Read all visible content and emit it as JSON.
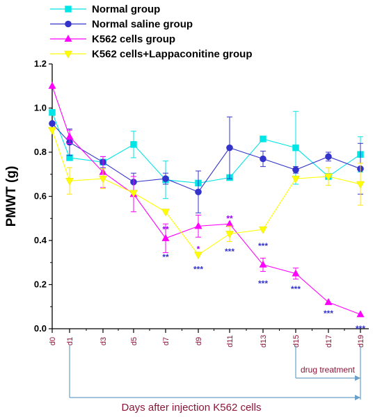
{
  "chart_data": {
    "type": "line",
    "xlabel": "Days after injection K562 cells",
    "ylabel": "PMWT (g)",
    "ylim": [
      0.0,
      1.2
    ],
    "yticks": [
      "0.0",
      "0.2",
      "0.4",
      "0.6",
      "0.8",
      "1.0",
      "1.2"
    ],
    "categories": [
      "d0",
      "d1",
      "d3",
      "d5",
      "d7",
      "d9",
      "d11",
      "d13",
      "d15",
      "d17",
      "d19"
    ],
    "annotation": "drug treatment",
    "legend_position": "top-left",
    "grid": false,
    "series": [
      {
        "name": "Normal group",
        "color": "#00e5e5",
        "marker": "square",
        "values": [
          0.98,
          0.775,
          0.755,
          0.835,
          0.675,
          0.66,
          0.685,
          0.86,
          0.82,
          0.69,
          0.79
        ],
        "errors": [
          0.0,
          0.0,
          0.0,
          0.06,
          0.085,
          0.0,
          0.0,
          0.0,
          0.165,
          0.0,
          0.08
        ]
      },
      {
        "name": "Normal saline group",
        "color": "#3333cc",
        "marker": "circle",
        "values": [
          0.93,
          0.845,
          0.755,
          0.665,
          0.68,
          0.62,
          0.82,
          0.77,
          0.72,
          0.78,
          0.725
        ],
        "errors": [
          0.0,
          0.06,
          0.025,
          0.04,
          0.025,
          0.095,
          0.14,
          0.035,
          0.015,
          0.02,
          0.115
        ]
      },
      {
        "name": "K562 cells group",
        "color": "#ff00ff",
        "marker": "triangle-up",
        "values": [
          1.1,
          0.87,
          0.71,
          0.61,
          0.41,
          0.465,
          0.475,
          0.29,
          0.25,
          0.12,
          0.065
        ],
        "errors": [
          0.0,
          0.03,
          0.07,
          0.08,
          0.065,
          0.05,
          0.0,
          0.03,
          0.025,
          0.0,
          0.0
        ]
      },
      {
        "name": "K562 cells+Lappaconitine group",
        "color": "#ffff00",
        "marker": "triangle-down",
        "values": [
          0.9,
          0.67,
          0.68,
          0.615,
          0.53,
          0.335,
          0.43,
          0.45,
          0.68,
          0.69,
          0.655
        ],
        "errors": [
          0.0,
          0.06,
          0.045,
          0.0,
          0.0,
          0.0,
          0.035,
          0.0,
          0.0,
          0.04,
          0.095
        ]
      }
    ],
    "significance": [
      {
        "cat": "d7",
        "value": 0.45,
        "text": "**",
        "color": "#9900ff"
      },
      {
        "cat": "d7",
        "value": 0.325,
        "text": "**",
        "color": "#3333cc"
      },
      {
        "cat": "d9",
        "value": 0.36,
        "text": "*",
        "color": "#9900ff"
      },
      {
        "cat": "d9",
        "value": 0.27,
        "text": "***",
        "color": "#3333cc"
      },
      {
        "cat": "d11",
        "value": 0.5,
        "text": "**",
        "color": "#9900ff"
      },
      {
        "cat": "d11",
        "value": 0.35,
        "text": "***",
        "color": "#3333cc"
      },
      {
        "cat": "d13",
        "value": 0.375,
        "text": "***",
        "color": "#3333cc"
      },
      {
        "cat": "d13",
        "value": 0.205,
        "text": "***",
        "color": "#3333cc"
      },
      {
        "cat": "d15",
        "value": 0.18,
        "text": "***",
        "color": "#3333cc"
      },
      {
        "cat": "d17",
        "value": 0.07,
        "text": "***",
        "color": "#3333cc"
      },
      {
        "cat": "d19",
        "value": 0.0,
        "text": "***",
        "color": "#3333cc"
      }
    ]
  }
}
